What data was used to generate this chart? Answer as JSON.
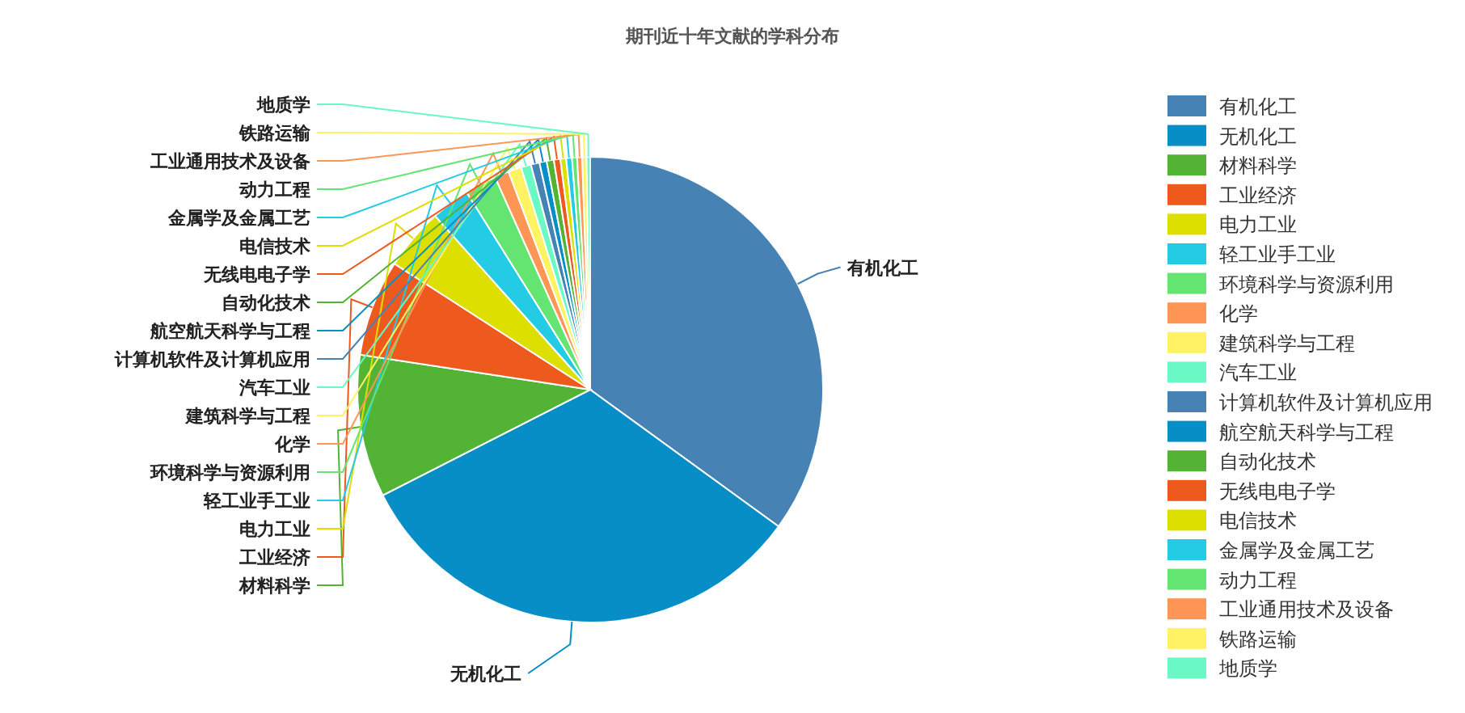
{
  "chart_data": {
    "type": "pie",
    "title": "期刊近十年文献的学科分布",
    "categories": [
      "有机化工",
      "无机化工",
      "材料科学",
      "工业经济",
      "电力工业",
      "轻工业手工业",
      "环境科学与资源利用",
      "化学",
      "建筑科学与工程",
      "汽车工业",
      "计算机软件及计算机应用",
      "航空航天科学与工程",
      "自动化技术",
      "无线电电子学",
      "电信技术",
      "金属学及金属工艺",
      "动力工程",
      "工业通用技术及设备",
      "铁路运输",
      "地质学"
    ],
    "values": [
      35.0,
      32.5,
      9.9,
      6.7,
      4.3,
      2.7,
      2.2,
      1.0,
      0.9,
      0.7,
      0.6,
      0.5,
      0.5,
      0.45,
      0.4,
      0.4,
      0.35,
      0.35,
      0.3,
      0.25
    ],
    "colors": [
      "#4682b4",
      "#078ec6",
      "#52b335",
      "#ee5a1e",
      "#dddf00",
      "#24cbe5",
      "#64e572",
      "#ff9655",
      "#fff263",
      "#6af9c4",
      "#4682b4",
      "#078ec6",
      "#52b335",
      "#ee5a1e",
      "#dddf00",
      "#24cbe5",
      "#64e572",
      "#ff9655",
      "#fff263",
      "#6af9c4"
    ],
    "legend": "right"
  }
}
